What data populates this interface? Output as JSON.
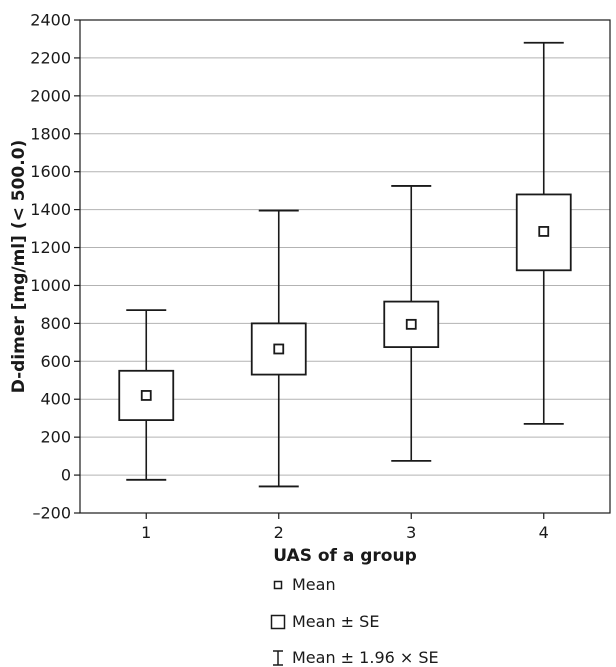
{
  "chart_data": {
    "type": "box",
    "xlabel": "UAS of a group",
    "ylabel": "D-dimer [mg/ml] (< 500.0)",
    "ylim": [
      -200,
      2400
    ],
    "yticks": [
      -200,
      0,
      200,
      400,
      600,
      800,
      1000,
      1200,
      1400,
      1600,
      1800,
      2000,
      2200,
      2400
    ],
    "ytick_labels": [
      "–200",
      "0",
      "200",
      "400",
      "600",
      "800",
      "1000",
      "1200",
      "1400",
      "1600",
      "1800",
      "2000",
      "2200",
      "2400"
    ],
    "categories": [
      "1",
      "2",
      "3",
      "4"
    ],
    "grid": true,
    "groups": [
      {
        "category": "1",
        "mean": 420,
        "se_low": 290,
        "se_high": 550,
        "ci_low": -25,
        "ci_high": 870
      },
      {
        "category": "2",
        "mean": 665,
        "se_low": 530,
        "se_high": 800,
        "ci_low": -60,
        "ci_high": 1395
      },
      {
        "category": "3",
        "mean": 795,
        "se_low": 675,
        "se_high": 915,
        "ci_low": 75,
        "ci_high": 1525
      },
      {
        "category": "4",
        "mean": 1285,
        "se_low": 1080,
        "se_high": 1480,
        "ci_low": 270,
        "ci_high": 2280
      }
    ],
    "legend": {
      "position": "bottom",
      "items": [
        {
          "symbol": "small-square",
          "label": "Mean"
        },
        {
          "symbol": "large-square",
          "label": "Mean ± SE"
        },
        {
          "symbol": "whisker",
          "label": "Mean ± 1.96 × SE"
        }
      ]
    },
    "colors": {
      "line": "#1a1a1a",
      "grid": "#b3b3b3",
      "background": "#ffffff"
    }
  }
}
